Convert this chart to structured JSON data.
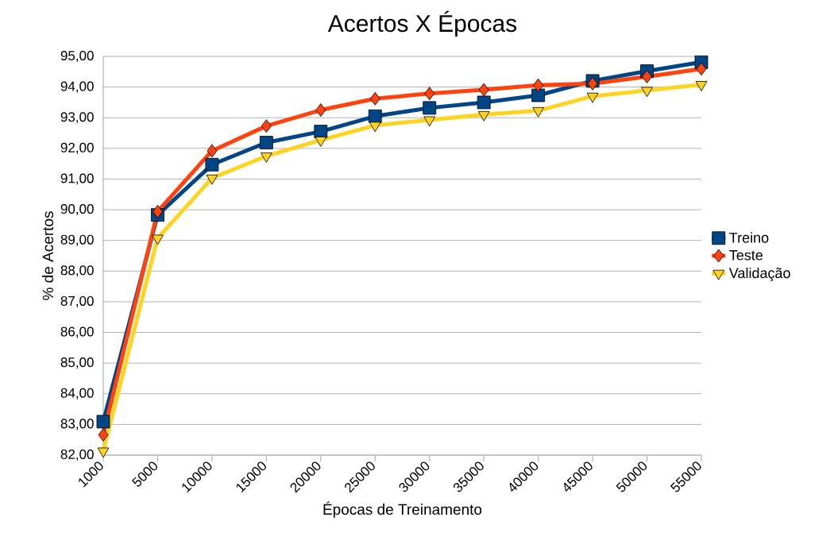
{
  "chart_data": {
    "type": "line",
    "title": "Acertos X Épocas",
    "xlabel": "Épocas de Treinamento",
    "ylabel": "% de Acertos",
    "categories": [
      "1000",
      "5000",
      "10000",
      "15000",
      "20000",
      "25000",
      "30000",
      "35000",
      "40000",
      "45000",
      "50000",
      "55000"
    ],
    "series": [
      {
        "name": "Treino",
        "color": "#004586",
        "marker": "square",
        "values": [
          83.09,
          89.83,
          91.47,
          92.19,
          92.55,
          93.05,
          93.32,
          93.5,
          93.73,
          94.2,
          94.52,
          94.81
        ]
      },
      {
        "name": "Teste",
        "color": "#ff420e",
        "marker": "diamond",
        "values": [
          82.66,
          89.94,
          91.92,
          92.73,
          93.25,
          93.62,
          93.79,
          93.91,
          94.06,
          94.11,
          94.34,
          94.59
        ]
      },
      {
        "name": "Validação",
        "color": "#ffd320",
        "marker": "triangle",
        "values": [
          82.13,
          89.07,
          91.03,
          91.75,
          92.27,
          92.75,
          92.93,
          93.1,
          93.23,
          93.7,
          93.89,
          94.08
        ]
      }
    ],
    "ylim": [
      82,
      95
    ],
    "yticks": [
      {
        "value": 82,
        "label": "82,00"
      },
      {
        "value": 83,
        "label": "83,00"
      },
      {
        "value": 84,
        "label": "84,00"
      },
      {
        "value": 85,
        "label": "85,00"
      },
      {
        "value": 86,
        "label": "86,00"
      },
      {
        "value": 87,
        "label": "87,00"
      },
      {
        "value": 88,
        "label": "88,00"
      },
      {
        "value": 89,
        "label": "89,00"
      },
      {
        "value": 90,
        "label": "90,00"
      },
      {
        "value": 91,
        "label": "91,00"
      },
      {
        "value": 92,
        "label": "92,00"
      },
      {
        "value": 93,
        "label": "93,00"
      },
      {
        "value": 94,
        "label": "94,00"
      },
      {
        "value": 95,
        "label": "95,00"
      }
    ],
    "grid": "y",
    "legend": "right",
    "line_style": "solid"
  }
}
